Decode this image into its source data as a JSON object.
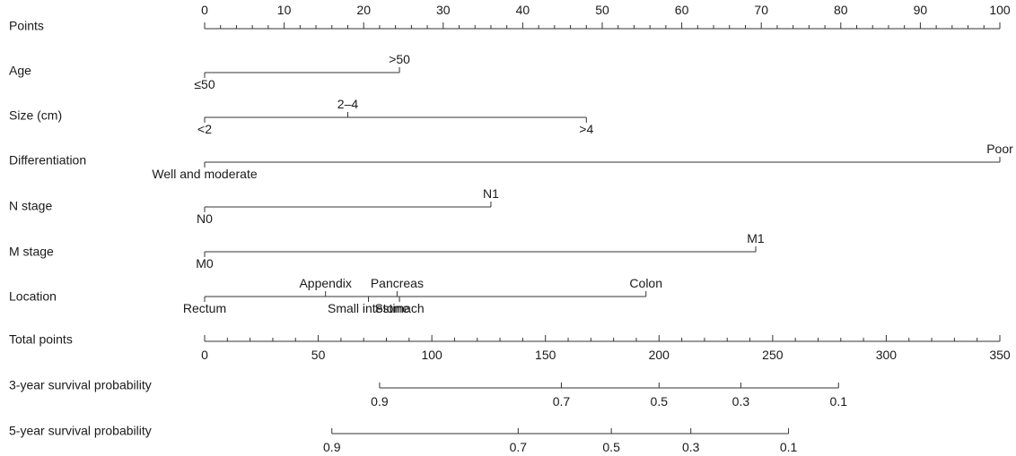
{
  "chart_data": {
    "type": "nomogram",
    "rows": [
      {
        "label": "Points"
      },
      {
        "label": "Age"
      },
      {
        "label": "Size (cm)"
      },
      {
        "label": "Differentiation"
      },
      {
        "label": "N stage"
      },
      {
        "label": "M stage"
      },
      {
        "label": "Location"
      },
      {
        "label": "Total points"
      },
      {
        "label": "3-year survival probability"
      },
      {
        "label": "5-year survival probability"
      }
    ],
    "points_axis": {
      "range": [
        0,
        100
      ],
      "labeled_ticks": [
        "0",
        "10",
        "20",
        "30",
        "40",
        "50",
        "60",
        "70",
        "80",
        "90",
        "100"
      ],
      "minor_step": 2
    },
    "predictors": [
      {
        "name": "Age",
        "levels": [
          {
            "label": "≤50",
            "points": 0,
            "side": "below"
          },
          {
            "label": ">50",
            "points": 24.5,
            "side": "above"
          }
        ]
      },
      {
        "name": "Size (cm)",
        "levels": [
          {
            "label": "<2",
            "points": 0,
            "side": "below"
          },
          {
            "label": "2–4",
            "points": 18,
            "side": "above"
          },
          {
            "label": ">4",
            "points": 48,
            "side": "below"
          }
        ]
      },
      {
        "name": "Differentiation",
        "levels": [
          {
            "label": "Well and moderate",
            "points": 0,
            "side": "below"
          },
          {
            "label": "Poor",
            "points": 100,
            "side": "above"
          }
        ]
      },
      {
        "name": "N stage",
        "levels": [
          {
            "label": "N0",
            "points": 0,
            "side": "below"
          },
          {
            "label": "N1",
            "points": 36,
            "side": "above"
          }
        ]
      },
      {
        "name": "M stage",
        "levels": [
          {
            "label": "M0",
            "points": 0,
            "side": "below"
          },
          {
            "label": "M1",
            "points": 69.3,
            "side": "above"
          }
        ]
      },
      {
        "name": "Location",
        "levels": [
          {
            "label": "Rectum",
            "points": 0,
            "side": "below"
          },
          {
            "label": "Appendix",
            "points": 15.2,
            "side": "above"
          },
          {
            "label": "Small intestine",
            "points": 20.6,
            "side": "below"
          },
          {
            "label": "Pancreas",
            "points": 24.2,
            "side": "above"
          },
          {
            "label": "Stomach",
            "points": 24.5,
            "side": "below"
          },
          {
            "label": "Colon",
            "points": 55.5,
            "side": "above"
          }
        ]
      }
    ],
    "total_points_axis": {
      "range": [
        0,
        350
      ],
      "labeled_ticks": [
        "0",
        "50",
        "100",
        "150",
        "200",
        "250",
        "300",
        "350"
      ],
      "minor_step": 10
    },
    "survival_axes": [
      {
        "name": "3-year survival probability",
        "ticks": [
          {
            "label": "0.9",
            "total_points": 77
          },
          {
            "label": "0.7",
            "total_points": 157
          },
          {
            "label": "0.5",
            "total_points": 200
          },
          {
            "label": "0.3",
            "total_points": 236
          },
          {
            "label": "0.1",
            "total_points": 279
          }
        ]
      },
      {
        "name": "5-year survival probability",
        "ticks": [
          {
            "label": "0.9",
            "total_points": 56
          },
          {
            "label": "0.7",
            "total_points": 138
          },
          {
            "label": "0.5",
            "total_points": 179
          },
          {
            "label": "0.3",
            "total_points": 214
          },
          {
            "label": "0.1",
            "total_points": 257
          }
        ]
      }
    ],
    "colors": {
      "line": "#333333",
      "text": "#1a1a1a",
      "background": "#ffffff"
    }
  }
}
